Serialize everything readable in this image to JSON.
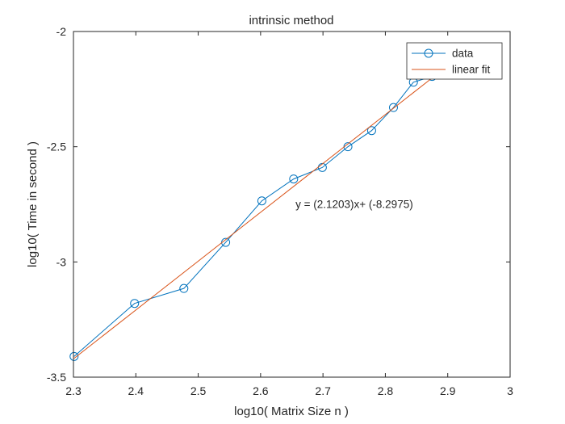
{
  "chart_data": {
    "type": "line",
    "title": "intrinsic method",
    "xlabel": "log10( Matrix Size n )",
    "ylabel": "log10( Time in second )",
    "xlim": [
      2.3,
      3.0
    ],
    "ylim": [
      -3.5,
      -2.0
    ],
    "xticks": [
      2.3,
      2.4,
      2.5,
      2.6,
      2.7,
      2.8,
      2.9,
      3.0
    ],
    "xtick_labels": [
      "2.3",
      "2.4",
      "2.5",
      "2.6",
      "2.7",
      "2.8",
      "2.9",
      "3"
    ],
    "yticks": [
      -3.5,
      -3.0,
      -2.5,
      -2.0
    ],
    "ytick_labels": [
      "-3.5",
      "-3",
      "-2.5",
      "-2"
    ],
    "grid": false,
    "legend_position": "top-right",
    "series": [
      {
        "name": "data",
        "marker": "circle",
        "color": "#0072BD",
        "x": [
          2.301,
          2.398,
          2.477,
          2.544,
          2.602,
          2.653,
          2.699,
          2.74,
          2.778,
          2.813,
          2.845,
          2.875
        ],
        "y": [
          -3.41,
          -3.18,
          -3.115,
          -2.915,
          -2.735,
          -2.64,
          -2.59,
          -2.5,
          -2.43,
          -2.33,
          -2.22,
          -2.195
        ]
      },
      {
        "name": "linear fit",
        "marker": "none",
        "color": "#D95319",
        "x": [
          2.301,
          2.875
        ],
        "y": [
          -3.4186,
          -2.2015
        ]
      }
    ],
    "annotation": {
      "text": "y = (2.1203)x+ (-8.2975)",
      "x": 2.656,
      "y": -2.765
    }
  }
}
